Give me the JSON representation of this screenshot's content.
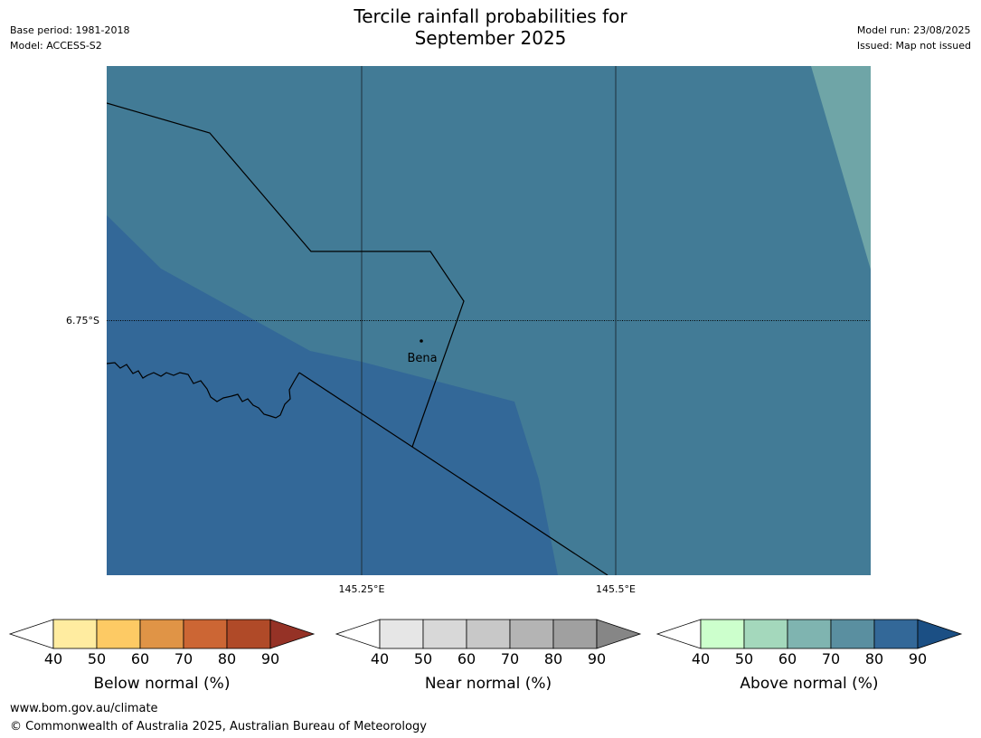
{
  "header": {
    "title_line1": "Tercile rainfall probabilities for",
    "title_line2": "September 2025",
    "base_period": "Base period: 1981-2018",
    "model": "Model: ACCESS-S2",
    "model_run": "Model run: 23/08/2025",
    "issued": "Issued: Map not issued"
  },
  "map": {
    "lat_labels": [
      "6.75°S"
    ],
    "lon_labels": [
      "145.25°E",
      "145.5°E"
    ],
    "place": "Bena",
    "colors": {
      "above_70_80": "#427b96",
      "above_80_90": "#336898",
      "above_60_70": "#6fa5a7",
      "boundary": "#000000"
    }
  },
  "legend": {
    "below": {
      "title": "Below normal (%)",
      "ticks": [
        "40",
        "50",
        "60",
        "70",
        "80",
        "90"
      ],
      "colors": [
        "#ffffff",
        "#ffeca0",
        "#fdca64",
        "#e09446",
        "#cc6634",
        "#b04a28",
        "#953226"
      ]
    },
    "near": {
      "title": "Near normal (%)",
      "ticks": [
        "40",
        "50",
        "60",
        "70",
        "80",
        "90"
      ],
      "colors": [
        "#ffffff",
        "#e6e6e6",
        "#d8d8d8",
        "#c8c8c8",
        "#b4b4b4",
        "#a0a0a0",
        "#868686"
      ]
    },
    "above": {
      "title": "Above normal (%)",
      "ticks": [
        "40",
        "50",
        "60",
        "70",
        "80",
        "90"
      ],
      "colors": [
        "#ffffff",
        "#ccffcc",
        "#a4d8bc",
        "#7fb4b0",
        "#5a8fa0",
        "#336898",
        "#1b4f84"
      ]
    }
  },
  "footer": {
    "url": "www.bom.gov.au/climate",
    "copyright": "© Commonwealth of Australia 2025, Australian Bureau of Meteorology"
  }
}
